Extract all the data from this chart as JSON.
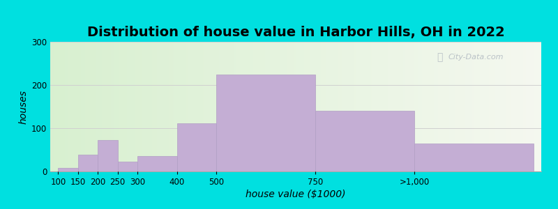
{
  "title": "Distribution of house value in Harbor Hills, OH in 2022",
  "xlabel": "house value ($1000)",
  "ylabel": "houses",
  "bar_labels": [
    "100",
    "150",
    "200",
    "250",
    "300",
    "400",
    "500",
    "750",
    ">1,000"
  ],
  "bar_values": [
    8,
    38,
    72,
    22,
    35,
    112,
    225,
    140,
    65
  ],
  "bar_color": "#c4aed4",
  "bar_edge_color": "#b09ec4",
  "background_outer": "#00e0e0",
  "ylim": [
    0,
    300
  ],
  "yticks": [
    0,
    100,
    200,
    300
  ],
  "title_fontsize": 14,
  "axis_label_fontsize": 10,
  "tick_fontsize": 8.5,
  "watermark_text": "City-Data.com",
  "grid_color": "#d0d0d0",
  "bin_edges": [
    100,
    150,
    200,
    250,
    300,
    400,
    500,
    750,
    1000,
    1300
  ],
  "xtick_positions": [
    100,
    150,
    200,
    250,
    300,
    400,
    500,
    750,
    1000
  ],
  "xlim": [
    80,
    1320
  ]
}
